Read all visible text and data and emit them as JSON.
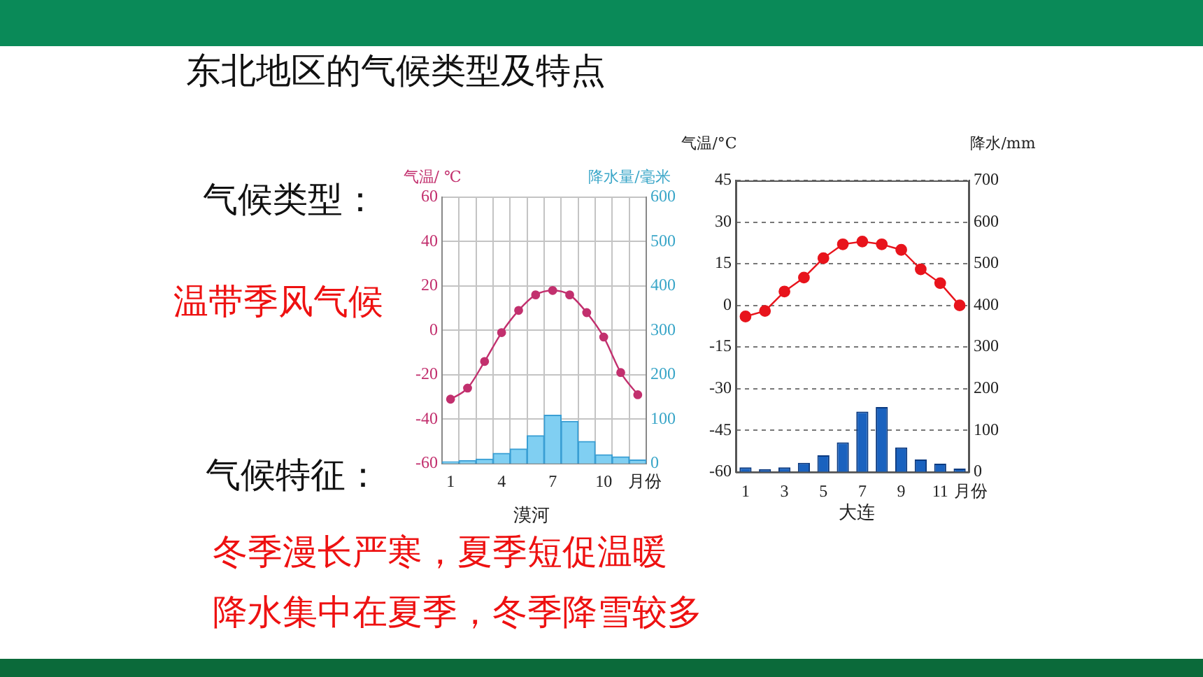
{
  "chart_data": [
    {
      "type": "other",
      "title": "东北地区的气候类型及特点",
      "annotations": [
        "气候类型：",
        "温带季风气候",
        "气候特征：",
        "冬季漫长严寒，夏季短促温暖",
        "降水集中在夏季，冬季降雪较多"
      ]
    },
    {
      "type": "bar",
      "title": "漠河",
      "xlabel": "月份",
      "ylabel": "气温/ ℃",
      "y2label": "降水量/毫米",
      "categories": [
        "1",
        null,
        null,
        "4",
        null,
        null,
        "7",
        null,
        null,
        "10",
        null,
        null
      ],
      "ylim": [
        -60,
        60
      ],
      "yticks": [
        -60,
        -40,
        -20,
        0,
        20,
        40,
        60
      ],
      "y2lim": [
        0,
        600
      ],
      "y2ticks": [
        0,
        100,
        200,
        300,
        400,
        500,
        600
      ],
      "grid": true,
      "marker": "circle",
      "series": [
        {
          "type": "bar",
          "axis": "y2",
          "color": "#80cff2",
          "values": [
            4,
            7,
            10,
            23,
            33,
            63,
            109,
            95,
            50,
            20,
            15,
            8
          ]
        },
        {
          "type": "line",
          "color": "#c2306e",
          "values": [
            -31,
            -26,
            -14,
            -1,
            9,
            16,
            18,
            16,
            8,
            -3,
            -19,
            -29
          ]
        }
      ]
    },
    {
      "type": "bar",
      "title": "大连",
      "xlabel": "月份",
      "ylabel": "气温/°C",
      "y2label": "降水/mm",
      "categories": [
        "1",
        null,
        "3",
        null,
        "5",
        null,
        "7",
        null,
        "9",
        null,
        "11",
        null
      ],
      "ylim": [
        -60,
        45
      ],
      "yticks": [
        -60,
        -45,
        -30,
        -15,
        0,
        15,
        30,
        45
      ],
      "y2lim": [
        0,
        700
      ],
      "y2ticks": [
        0,
        100,
        200,
        300,
        400,
        500,
        600,
        700
      ],
      "grid": "y",
      "marker": "circle",
      "series": [
        {
          "type": "bar",
          "axis": "y2",
          "color": "#1a62bf",
          "values": [
            11,
            7,
            11,
            22,
            40,
            71,
            145,
            156,
            59,
            30,
            20,
            8
          ]
        },
        {
          "type": "line",
          "color": "#e8141c",
          "values": [
            -4,
            -2,
            5,
            10,
            17,
            22,
            23,
            22,
            20,
            13,
            8,
            0
          ]
        }
      ]
    }
  ]
}
